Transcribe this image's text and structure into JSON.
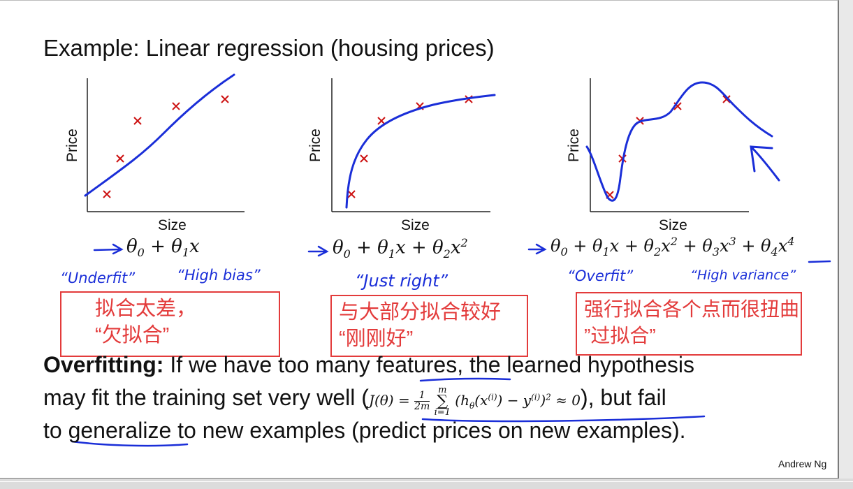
{
  "slide": {
    "title": "Example: Linear regression (housing prices)",
    "credit": "Andrew Ng"
  },
  "plots": [
    {
      "xlabel": "Size",
      "ylabel": "Price",
      "formula_parts": [
        "θ",
        "0",
        " + θ",
        "1",
        "x"
      ],
      "note_a": "“Underfit”",
      "note_b": "“High bias”"
    },
    {
      "xlabel": "Size",
      "ylabel": "Price",
      "note_a": "“Just right”"
    },
    {
      "xlabel": "Size",
      "ylabel": "Price",
      "note_a": "“Overfit”",
      "note_b": "“High variance”"
    }
  ],
  "cn_boxes": [
    "拟合太差，\n“欠拟合”",
    "与大部分拟合较好\n“刚刚好”",
    "强行拟合各个点而很扭曲\n”过拟合”"
  ],
  "body": {
    "line1_bold": "Overfitting:",
    "line1_rest": " If we have too many features, the learned hypothesis",
    "line2_start": "may fit the training set very well (",
    "line2_end": "), but fail",
    "line3": "to generalize to new examples (predict prices on new examples)."
  },
  "colors": {
    "ink": "#1a2ed8",
    "marker": "#cc1111",
    "box": "#e33b3b"
  }
}
